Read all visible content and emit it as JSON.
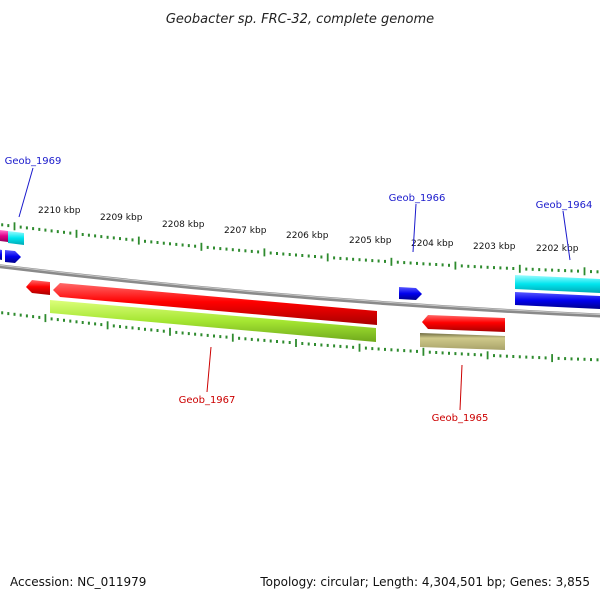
{
  "title": "Geobacter sp. FRC-32, complete genome",
  "footer": {
    "accession": "Accession: NC_011979",
    "summary": "Topology: circular; Length: 4,304,501 bp; Genes: 3,855"
  },
  "colors": {
    "backbone": "#8a8a8a",
    "tick": "#2e8b2e",
    "label_forward": "#1a1acc",
    "label_reverse": "#cc0000"
  },
  "scale_labels": [
    "2210 kbp",
    "2209 kbp",
    "2208 kbp",
    "2207 kbp",
    "2206 kbp",
    "2205 kbp",
    "2204 kbp",
    "2203 kbp",
    "2202 kbp"
  ],
  "gene_labels": {
    "geob_1969": "Geob_1969",
    "geob_1966": "Geob_1966",
    "geob_1964": "Geob_1964",
    "geob_1967": "Geob_1967",
    "geob_1965": "Geob_1965"
  },
  "features": [
    {
      "name": "geob-1969-feature",
      "strand": "+",
      "color": "magenta"
    },
    {
      "name": "geob-1969-cyan-feature",
      "strand": "+",
      "color": "cyan"
    },
    {
      "name": "geob-1966-feature",
      "strand": "+",
      "color": "blue"
    },
    {
      "name": "geob-1964-feature",
      "strand": "+",
      "color": "cyan"
    },
    {
      "name": "geob-1967-feature",
      "strand": "-",
      "color": "red"
    },
    {
      "name": "geob-1965-feature",
      "strand": "-",
      "color": "red"
    }
  ]
}
